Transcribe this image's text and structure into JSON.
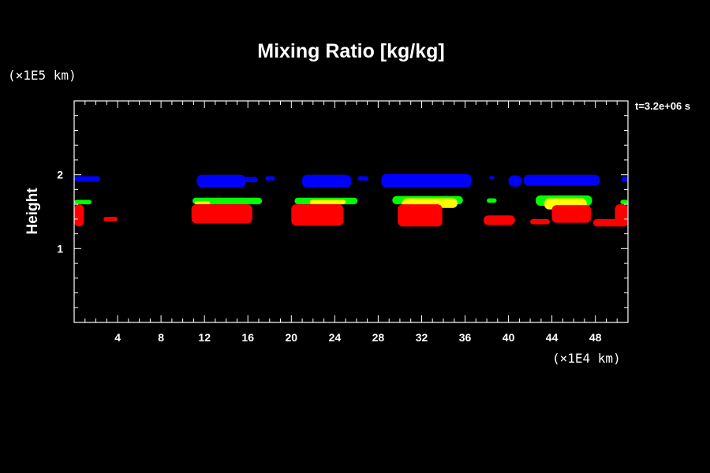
{
  "chart_data": {
    "type": "heatmap",
    "title": "Mixing Ratio [kg/kg]",
    "ylabel": "Height",
    "xlabel": "",
    "x_unit_label": "(×1E4 km)",
    "y_unit_label": "(×1E5 km)",
    "time_label": "t=3.2e+06 s",
    "xlim": [
      0,
      51
    ],
    "ylim": [
      0,
      3
    ],
    "x_ticks": [
      "4",
      "8",
      "12",
      "16",
      "20",
      "24",
      "28",
      "32",
      "36",
      "40",
      "44",
      "48"
    ],
    "y_ticks": [
      "1",
      "2"
    ],
    "colors": {
      "blue": "#0000ff",
      "green": "#00ff00",
      "yellow": "#ffff00",
      "red": "#ff0000",
      "frame": "#ffffff",
      "background": "#000000"
    },
    "series": [
      {
        "color": "blue",
        "regions": [
          {
            "x0": 0.0,
            "x1": 2.4,
            "y0": 1.91,
            "y1": 1.98
          },
          {
            "x0": 11.3,
            "x1": 15.8,
            "y0": 1.83,
            "y1": 2.0
          },
          {
            "x0": 15.6,
            "x1": 16.9,
            "y0": 1.9,
            "y1": 1.97
          },
          {
            "x0": 17.6,
            "x1": 18.5,
            "y0": 1.92,
            "y1": 1.98
          },
          {
            "x0": 21.0,
            "x1": 25.5,
            "y0": 1.83,
            "y1": 2.0
          },
          {
            "x0": 26.1,
            "x1": 27.1,
            "y0": 1.92,
            "y1": 1.98
          },
          {
            "x0": 28.3,
            "x1": 36.6,
            "y0": 1.83,
            "y1": 2.01
          },
          {
            "x0": 38.2,
            "x1": 38.7,
            "y0": 1.94,
            "y1": 1.98
          },
          {
            "x0": 40.0,
            "x1": 41.2,
            "y0": 1.84,
            "y1": 1.99
          },
          {
            "x0": 41.4,
            "x1": 48.4,
            "y0": 1.85,
            "y1": 2.0
          },
          {
            "x0": 50.4,
            "x1": 51.0,
            "y0": 1.9,
            "y1": 1.98
          }
        ]
      },
      {
        "color": "green",
        "regions": [
          {
            "x0": 0.0,
            "x1": 1.6,
            "y0": 1.6,
            "y1": 1.66
          },
          {
            "x0": 10.9,
            "x1": 17.3,
            "y0": 1.6,
            "y1": 1.69
          },
          {
            "x0": 20.3,
            "x1": 26.1,
            "y0": 1.6,
            "y1": 1.69
          },
          {
            "x0": 29.3,
            "x1": 35.8,
            "y0": 1.6,
            "y1": 1.71
          },
          {
            "x0": 38.0,
            "x1": 38.9,
            "y0": 1.62,
            "y1": 1.68
          },
          {
            "x0": 42.5,
            "x1": 47.7,
            "y0": 1.58,
            "y1": 1.72
          },
          {
            "x0": 50.3,
            "x1": 51.0,
            "y0": 1.6,
            "y1": 1.66
          }
        ]
      },
      {
        "color": "yellow",
        "regions": [
          {
            "x0": 11.1,
            "x1": 12.5,
            "y0": 1.6,
            "y1": 1.64
          },
          {
            "x0": 21.7,
            "x1": 25.0,
            "y0": 1.6,
            "y1": 1.66
          },
          {
            "x0": 30.2,
            "x1": 35.3,
            "y0": 1.55,
            "y1": 1.68
          },
          {
            "x0": 43.3,
            "x1": 47.2,
            "y0": 1.53,
            "y1": 1.68
          }
        ]
      },
      {
        "color": "red",
        "regions": [
          {
            "x0": 0.0,
            "x1": 0.9,
            "y0": 1.3,
            "y1": 1.6
          },
          {
            "x0": 2.7,
            "x1": 4.0,
            "y0": 1.37,
            "y1": 1.43
          },
          {
            "x0": 10.8,
            "x1": 16.4,
            "y0": 1.34,
            "y1": 1.6
          },
          {
            "x0": 20.0,
            "x1": 24.8,
            "y0": 1.31,
            "y1": 1.6
          },
          {
            "x0": 29.8,
            "x1": 33.9,
            "y0": 1.3,
            "y1": 1.6
          },
          {
            "x0": 37.7,
            "x1": 40.6,
            "y0": 1.32,
            "y1": 1.45
          },
          {
            "x0": 42.0,
            "x1": 43.8,
            "y0": 1.33,
            "y1": 1.4
          },
          {
            "x0": 44.0,
            "x1": 47.6,
            "y0": 1.35,
            "y1": 1.59
          },
          {
            "x0": 47.8,
            "x1": 51.0,
            "y0": 1.3,
            "y1": 1.4
          },
          {
            "x0": 49.8,
            "x1": 51.0,
            "y0": 1.3,
            "y1": 1.6
          }
        ]
      }
    ]
  }
}
